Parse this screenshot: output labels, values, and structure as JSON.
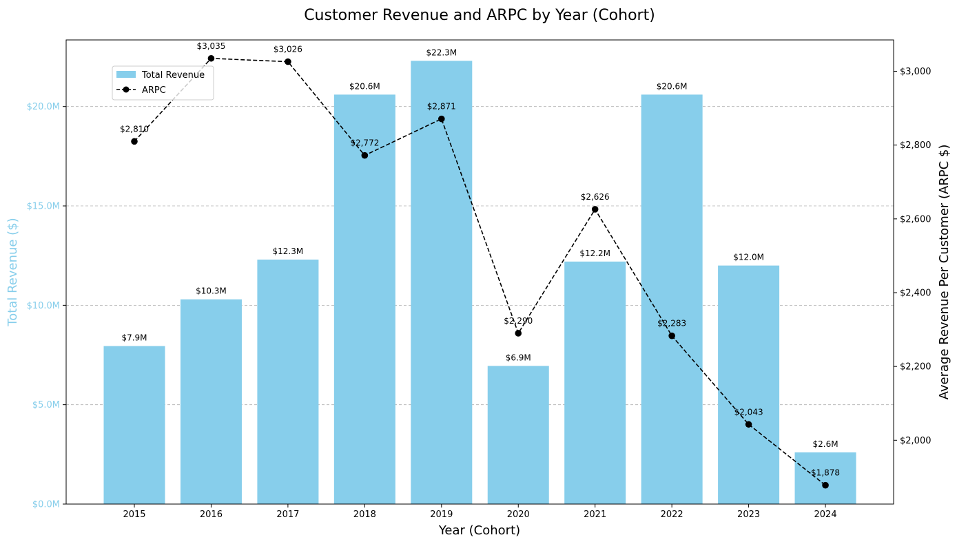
{
  "chart_data": {
    "type": "bar",
    "title": "Customer Revenue and ARPC by Year (Cohort)",
    "xlabel": "Year (Cohort)",
    "ylabel": "Total Revenue ($)",
    "y2label": "Average Revenue Per Customer (ARPC $)",
    "categories": [
      "2015",
      "2016",
      "2017",
      "2018",
      "2019",
      "2020",
      "2021",
      "2022",
      "2023",
      "2024"
    ],
    "ylim": [
      0,
      23.35
    ],
    "y2lim": [
      1827,
      3085
    ],
    "yticks": [
      0,
      5,
      10,
      15,
      20
    ],
    "ytick_labels": [
      "$0.0M",
      "$5.0M",
      "$10.0M",
      "$15.0M",
      "$20.0M"
    ],
    "y2ticks": [
      2000,
      2200,
      2400,
      2600,
      2800,
      3000
    ],
    "y2tick_labels": [
      "$2,000",
      "$2,200",
      "$2,400",
      "$2,600",
      "$2,800",
      "$3,000"
    ],
    "grid": "horizontal dashed",
    "legend_position": "upper-left",
    "series": [
      {
        "name": "Total Revenue",
        "type": "bar",
        "axis": "left",
        "color": "#87CEEB",
        "values": [
          7.95,
          10.3,
          12.3,
          20.6,
          22.3,
          6.95,
          12.2,
          20.6,
          12.0,
          2.6
        ],
        "labels": [
          "$7.9M",
          "$10.3M",
          "$12.3M",
          "$20.6M",
          "$22.3M",
          "$6.9M",
          "$12.2M",
          "$20.6M",
          "$12.0M",
          "$2.6M"
        ]
      },
      {
        "name": "ARPC",
        "type": "line",
        "axis": "right",
        "color": "#000000",
        "line_style": "dashed",
        "marker": "circle",
        "values": [
          2810,
          3035,
          3026,
          2772,
          2871,
          2290,
          2626,
          2283,
          2043,
          1878
        ],
        "labels": [
          "$2,810",
          "$3,035",
          "$3,026",
          "$2,772",
          "$2,871",
          "$2,290",
          "$2,626",
          "$2,283",
          "$2,043",
          "$1,878"
        ]
      }
    ]
  }
}
